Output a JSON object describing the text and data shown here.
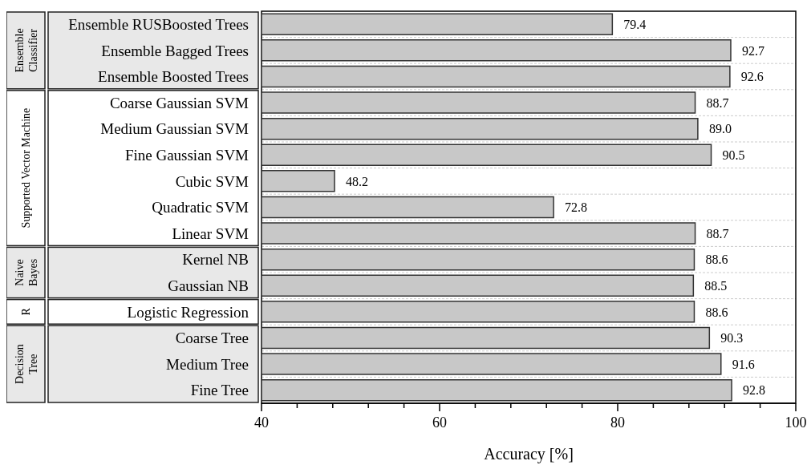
{
  "chart_data": {
    "type": "bar",
    "orientation": "horizontal",
    "xlabel": "Accuracy [%]",
    "categories": [
      "Ensemble RUSBoosted Trees",
      "Ensemble Bagged Trees",
      "Ensemble Boosted Trees",
      "Coarse Gaussian SVM",
      "Medium Gaussian SVM",
      "Fine Gaussian SVM",
      "Cubic SVM",
      "Quadratic SVM",
      "Linear SVM",
      "Kernel NB",
      "Gaussian NB",
      "Logistic Regression",
      "Coarse Tree",
      "Medium Tree",
      "Fine Tree"
    ],
    "values": [
      79.4,
      92.7,
      92.6,
      88.7,
      89.0,
      90.5,
      48.2,
      72.8,
      88.7,
      88.6,
      88.5,
      88.6,
      90.3,
      91.6,
      92.8
    ],
    "value_labels": [
      "79.4",
      "92.7",
      "92.6",
      "88.7",
      "89.0",
      "90.5",
      "48.2",
      "72.8",
      "88.7",
      "88.6",
      "88.5",
      "88.6",
      "90.3",
      "91.6",
      "92.8"
    ],
    "color": "#c8c8c8",
    "xlim": [
      40,
      100
    ],
    "xticks": [
      40,
      {
        "value": 44,
        "label": null
      },
      {
        "value": 48,
        "label": null
      },
      {
        "value": 52,
        "label": null
      },
      {
        "value": 56,
        "label": null
      },
      60,
      {
        "value": 64,
        "label": null
      },
      {
        "value": 68,
        "label": null
      },
      {
        "value": 72,
        "label": null
      },
      {
        "value": 76,
        "label": null
      },
      80,
      {
        "value": 84,
        "label": null
      },
      {
        "value": 88,
        "label": null
      },
      {
        "value": 92,
        "label": null
      },
      {
        "value": 96,
        "label": null
      },
      100
    ],
    "annotations": [
      "Ensemble Classifier",
      "Supported Vector Machine",
      "Naive Bayes",
      "R",
      "Decision Tree"
    ],
    "grid": "y"
  }
}
